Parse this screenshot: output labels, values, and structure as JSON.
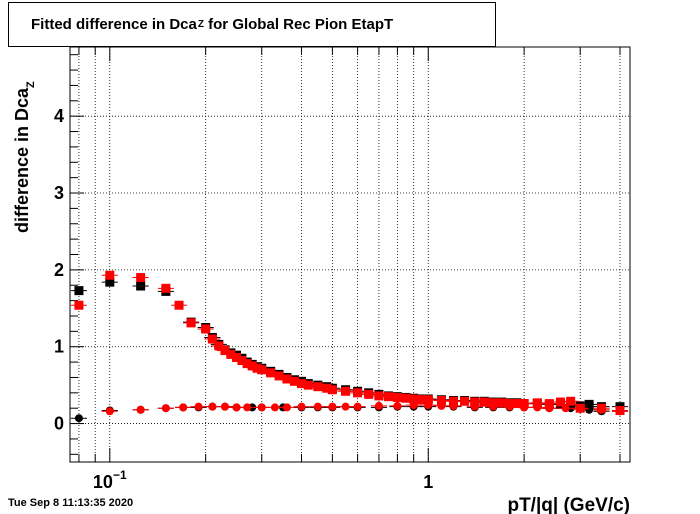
{
  "title": {
    "pre": "Fitted difference in Dca",
    "sub": "Z",
    "post": " for Global Rec Pion EtapT"
  },
  "footer": {
    "date": "Tue Sep  8 11:13:35 2020"
  },
  "chart_data": {
    "type": "scatter",
    "xlabel": "pT/|q| (GeV/c)",
    "ylabel": {
      "pre": "difference in Dca",
      "sub": "Z"
    },
    "xscale": "log",
    "xlim": [
      0.075,
      4.3
    ],
    "ylim": [
      -0.5,
      4.9
    ],
    "x_tick_labels": [
      {
        "value": 0.1,
        "base": "10",
        "exp": "−1"
      },
      {
        "value": 1,
        "base": "1",
        "exp": ""
      }
    ],
    "y_ticks": [
      0,
      1,
      2,
      3,
      4
    ],
    "grid": true,
    "series": [
      {
        "color": "#000000",
        "marker": "square",
        "points": [
          [
            0.08,
            1.73
          ],
          [
            0.1,
            1.84
          ],
          [
            0.125,
            1.79
          ],
          [
            0.15,
            1.72
          ],
          [
            0.18,
            1.32
          ],
          [
            0.2,
            1.25
          ],
          [
            0.21,
            1.12
          ],
          [
            0.22,
            1.03
          ],
          [
            0.23,
            0.96
          ],
          [
            0.24,
            0.92
          ],
          [
            0.25,
            0.89
          ],
          [
            0.26,
            0.85
          ],
          [
            0.27,
            0.8
          ],
          [
            0.28,
            0.77
          ],
          [
            0.29,
            0.74
          ],
          [
            0.3,
            0.72
          ],
          [
            0.32,
            0.68
          ],
          [
            0.34,
            0.64
          ],
          [
            0.36,
            0.6
          ],
          [
            0.38,
            0.57
          ],
          [
            0.4,
            0.55
          ],
          [
            0.42,
            0.52
          ],
          [
            0.45,
            0.5
          ],
          [
            0.48,
            0.48
          ],
          [
            0.5,
            0.46
          ],
          [
            0.55,
            0.44
          ],
          [
            0.6,
            0.42
          ],
          [
            0.65,
            0.4
          ],
          [
            0.7,
            0.38
          ],
          [
            0.75,
            0.36
          ],
          [
            0.8,
            0.35
          ],
          [
            0.85,
            0.34
          ],
          [
            0.9,
            0.33
          ],
          [
            0.95,
            0.32
          ],
          [
            1.0,
            0.32
          ],
          [
            1.1,
            0.31
          ],
          [
            1.2,
            0.3
          ],
          [
            1.3,
            0.3
          ],
          [
            1.4,
            0.29
          ],
          [
            1.5,
            0.29
          ],
          [
            1.6,
            0.28
          ],
          [
            1.7,
            0.28
          ],
          [
            1.8,
            0.27
          ],
          [
            1.9,
            0.27
          ],
          [
            2.0,
            0.26
          ],
          [
            2.2,
            0.26
          ],
          [
            2.4,
            0.25
          ],
          [
            2.6,
            0.25
          ],
          [
            2.8,
            0.24
          ],
          [
            3.0,
            0.23
          ],
          [
            3.2,
            0.25
          ],
          [
            3.5,
            0.22
          ],
          [
            4.0,
            0.22
          ]
        ]
      },
      {
        "color": "#000000",
        "marker": "circle",
        "points": [
          [
            0.08,
            0.07
          ],
          [
            0.1,
            0.17
          ],
          [
            0.125,
            0.18
          ],
          [
            0.15,
            0.2
          ],
          [
            0.17,
            0.21
          ],
          [
            0.19,
            0.21
          ],
          [
            0.21,
            0.22
          ],
          [
            0.23,
            0.22
          ],
          [
            0.25,
            0.21
          ],
          [
            0.28,
            0.21
          ],
          [
            0.3,
            0.21
          ],
          [
            0.35,
            0.21
          ],
          [
            0.4,
            0.21
          ],
          [
            0.45,
            0.21
          ],
          [
            0.5,
            0.21
          ],
          [
            0.6,
            0.21
          ],
          [
            0.7,
            0.21
          ],
          [
            0.8,
            0.22
          ],
          [
            0.9,
            0.22
          ],
          [
            1.0,
            0.22
          ],
          [
            1.2,
            0.22
          ],
          [
            1.4,
            0.21
          ],
          [
            1.6,
            0.21
          ],
          [
            1.8,
            0.21
          ],
          [
            2.0,
            0.21
          ],
          [
            2.4,
            0.2
          ],
          [
            2.8,
            0.2
          ],
          [
            3.2,
            0.18
          ],
          [
            3.5,
            0.16
          ],
          [
            4.0,
            0.16
          ]
        ]
      },
      {
        "color": "#ff0000",
        "marker": "square",
        "points": [
          [
            0.08,
            1.54
          ],
          [
            0.1,
            1.93
          ],
          [
            0.125,
            1.9
          ],
          [
            0.15,
            1.76
          ],
          [
            0.165,
            1.54
          ],
          [
            0.18,
            1.31
          ],
          [
            0.2,
            1.23
          ],
          [
            0.21,
            1.1
          ],
          [
            0.22,
            1.01
          ],
          [
            0.23,
            0.95
          ],
          [
            0.24,
            0.9
          ],
          [
            0.25,
            0.86
          ],
          [
            0.26,
            0.82
          ],
          [
            0.27,
            0.78
          ],
          [
            0.28,
            0.75
          ],
          [
            0.29,
            0.72
          ],
          [
            0.3,
            0.7
          ],
          [
            0.32,
            0.66
          ],
          [
            0.34,
            0.62
          ],
          [
            0.36,
            0.58
          ],
          [
            0.38,
            0.55
          ],
          [
            0.4,
            0.52
          ],
          [
            0.42,
            0.5
          ],
          [
            0.45,
            0.48
          ],
          [
            0.48,
            0.46
          ],
          [
            0.5,
            0.44
          ],
          [
            0.55,
            0.42
          ],
          [
            0.6,
            0.4
          ],
          [
            0.65,
            0.38
          ],
          [
            0.7,
            0.36
          ],
          [
            0.75,
            0.35
          ],
          [
            0.8,
            0.34
          ],
          [
            0.85,
            0.33
          ],
          [
            0.9,
            0.32
          ],
          [
            0.95,
            0.31
          ],
          [
            1.0,
            0.31
          ],
          [
            1.1,
            0.3
          ],
          [
            1.2,
            0.29
          ],
          [
            1.3,
            0.29
          ],
          [
            1.4,
            0.28
          ],
          [
            1.5,
            0.28
          ],
          [
            1.6,
            0.27
          ],
          [
            1.7,
            0.27
          ],
          [
            1.8,
            0.26
          ],
          [
            1.9,
            0.26
          ],
          [
            2.0,
            0.26
          ],
          [
            2.2,
            0.27
          ],
          [
            2.4,
            0.26
          ],
          [
            2.6,
            0.28
          ],
          [
            2.8,
            0.29
          ],
          [
            3.0,
            0.2
          ],
          [
            3.5,
            0.2
          ],
          [
            4.0,
            0.17
          ]
        ]
      },
      {
        "color": "#ff0000",
        "marker": "circle",
        "points": [
          [
            0.1,
            0.16
          ],
          [
            0.125,
            0.18
          ],
          [
            0.15,
            0.2
          ],
          [
            0.17,
            0.21
          ],
          [
            0.19,
            0.22
          ],
          [
            0.21,
            0.22
          ],
          [
            0.23,
            0.22
          ],
          [
            0.25,
            0.21
          ],
          [
            0.27,
            0.21
          ],
          [
            0.3,
            0.21
          ],
          [
            0.33,
            0.21
          ],
          [
            0.36,
            0.21
          ],
          [
            0.4,
            0.22
          ],
          [
            0.45,
            0.22
          ],
          [
            0.5,
            0.22
          ],
          [
            0.55,
            0.22
          ],
          [
            0.6,
            0.22
          ],
          [
            0.7,
            0.23
          ],
          [
            0.8,
            0.23
          ],
          [
            0.9,
            0.24
          ],
          [
            1.0,
            0.24
          ],
          [
            1.1,
            0.23
          ],
          [
            1.2,
            0.23
          ],
          [
            1.4,
            0.22
          ],
          [
            1.6,
            0.22
          ],
          [
            1.8,
            0.22
          ],
          [
            2.0,
            0.21
          ],
          [
            2.2,
            0.21
          ],
          [
            2.4,
            0.2
          ],
          [
            2.7,
            0.2
          ],
          [
            3.0,
            0.19
          ],
          [
            3.5,
            0.18
          ],
          [
            4.0,
            0.16
          ]
        ]
      }
    ]
  }
}
